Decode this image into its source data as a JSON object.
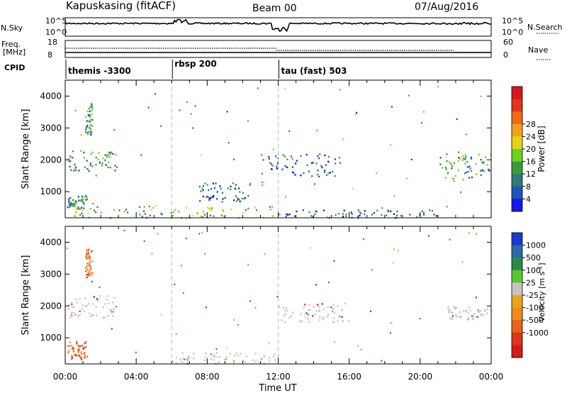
{
  "header": {
    "station": "Kapuskasing (fitACF)",
    "beam": "Beam 00",
    "date": "07/Aug/2016"
  },
  "panels": {
    "nsky": {
      "left_label": "N.Sky",
      "right_label": "N.Search",
      "left_ticks": [
        "10^5",
        "10^0"
      ],
      "right_ticks": [
        "10^5",
        "10^0"
      ]
    },
    "freq": {
      "left_label_1": "Freq.",
      "left_label_2": "[MHz]",
      "right_label": "Nave",
      "left_ticks": [
        "18",
        "8"
      ],
      "right_ticks": [
        "60",
        "0"
      ]
    },
    "cpid": {
      "label": "CPID",
      "segments": [
        {
          "name": "themis -3300",
          "start_hour": 0.0
        },
        {
          "name": "rbsp 200",
          "start_hour": 6.0
        },
        {
          "name": "tau (fast) 503",
          "start_hour": 12.0
        }
      ]
    }
  },
  "chart_data": [
    {
      "type": "heatmap",
      "name": "power",
      "xlabel": "Time UT",
      "ylabel": "Slant Range [km]",
      "x_range_hours": [
        0,
        24
      ],
      "ylim": [
        180,
        4500
      ],
      "yticks": [
        1000,
        2000,
        3000,
        4000
      ],
      "xticks": [
        "00:00",
        "04:00",
        "08:00",
        "12:00",
        "16:00",
        "20:00",
        "00:00"
      ],
      "colorbar": {
        "label": "Power [dB]",
        "ticks": [
          "4",
          "8",
          "12",
          "16",
          "20",
          "24",
          "28"
        ],
        "colors": [
          "#1616ee",
          "#2055b8",
          "#2f7a7a",
          "#3a9a3a",
          "#6cd21e",
          "#e8d21a",
          "#f0a21a",
          "#ee6a14",
          "#e4311c",
          "#d8181c"
        ]
      },
      "echo_regions": [
        {
          "t0": 0.1,
          "t1": 2.9,
          "r0": 1650,
          "r1": 2350,
          "level": "mid"
        },
        {
          "t0": 1.1,
          "t1": 1.5,
          "r0": 2800,
          "r1": 3800,
          "level": "mid"
        },
        {
          "t0": 0.1,
          "t1": 1.2,
          "r0": 480,
          "r1": 900,
          "level": "mid"
        },
        {
          "t0": 0.1,
          "t1": 12.0,
          "r0": 200,
          "r1": 600,
          "level": "high"
        },
        {
          "t0": 12.0,
          "t1": 21.0,
          "r0": 200,
          "r1": 450,
          "level": "low"
        },
        {
          "t0": 11.0,
          "t1": 15.5,
          "r0": 1500,
          "r1": 2200,
          "level": "low"
        },
        {
          "t0": 7.5,
          "t1": 10.5,
          "r0": 700,
          "r1": 1300,
          "level": "low"
        },
        {
          "t0": 21.0,
          "t1": 24.0,
          "r0": 1400,
          "r1": 2200,
          "level": "mid"
        }
      ]
    },
    {
      "type": "heatmap",
      "name": "velocity",
      "xlabel": "Time UT",
      "ylabel": "Slant Range [km]",
      "x_range_hours": [
        0,
        24
      ],
      "ylim": [
        180,
        4500
      ],
      "yticks": [
        1000,
        2000,
        3000,
        4000
      ],
      "xticks": [
        "00:00",
        "04:00",
        "08:00",
        "12:00",
        "16:00",
        "20:00",
        "00:00"
      ],
      "colorbar": {
        "label": "Velocity [m s",
        "label_sup": "-1",
        "label_end": "]",
        "ticks": [
          "1000",
          "500",
          "100",
          "25",
          "-25",
          "-100",
          "-500",
          "-1000"
        ],
        "colors": [
          "#1a3ad2",
          "#2a6aa8",
          "#2a8a4a",
          "#58c82a",
          "#c4c4c4",
          "#e8a41a",
          "#f08a1e",
          "#e8601c",
          "#e0341a",
          "#d81818"
        ]
      },
      "echo_regions": [
        {
          "t0": 0.1,
          "t1": 2.9,
          "r0": 1650,
          "r1": 2350,
          "level": "gray"
        },
        {
          "t0": 1.1,
          "t1": 1.5,
          "r0": 2900,
          "r1": 3800,
          "level": "neg"
        },
        {
          "t0": 0.1,
          "t1": 1.2,
          "r0": 300,
          "r1": 900,
          "level": "neg"
        },
        {
          "t0": 6.0,
          "t1": 12.0,
          "r0": 200,
          "r1": 550,
          "level": "gray"
        },
        {
          "t0": 12.0,
          "t1": 16.0,
          "r0": 1500,
          "r1": 2100,
          "level": "gray"
        },
        {
          "t0": 21.5,
          "t1": 24.0,
          "r0": 1600,
          "r1": 2000,
          "level": "gray"
        }
      ]
    }
  ]
}
